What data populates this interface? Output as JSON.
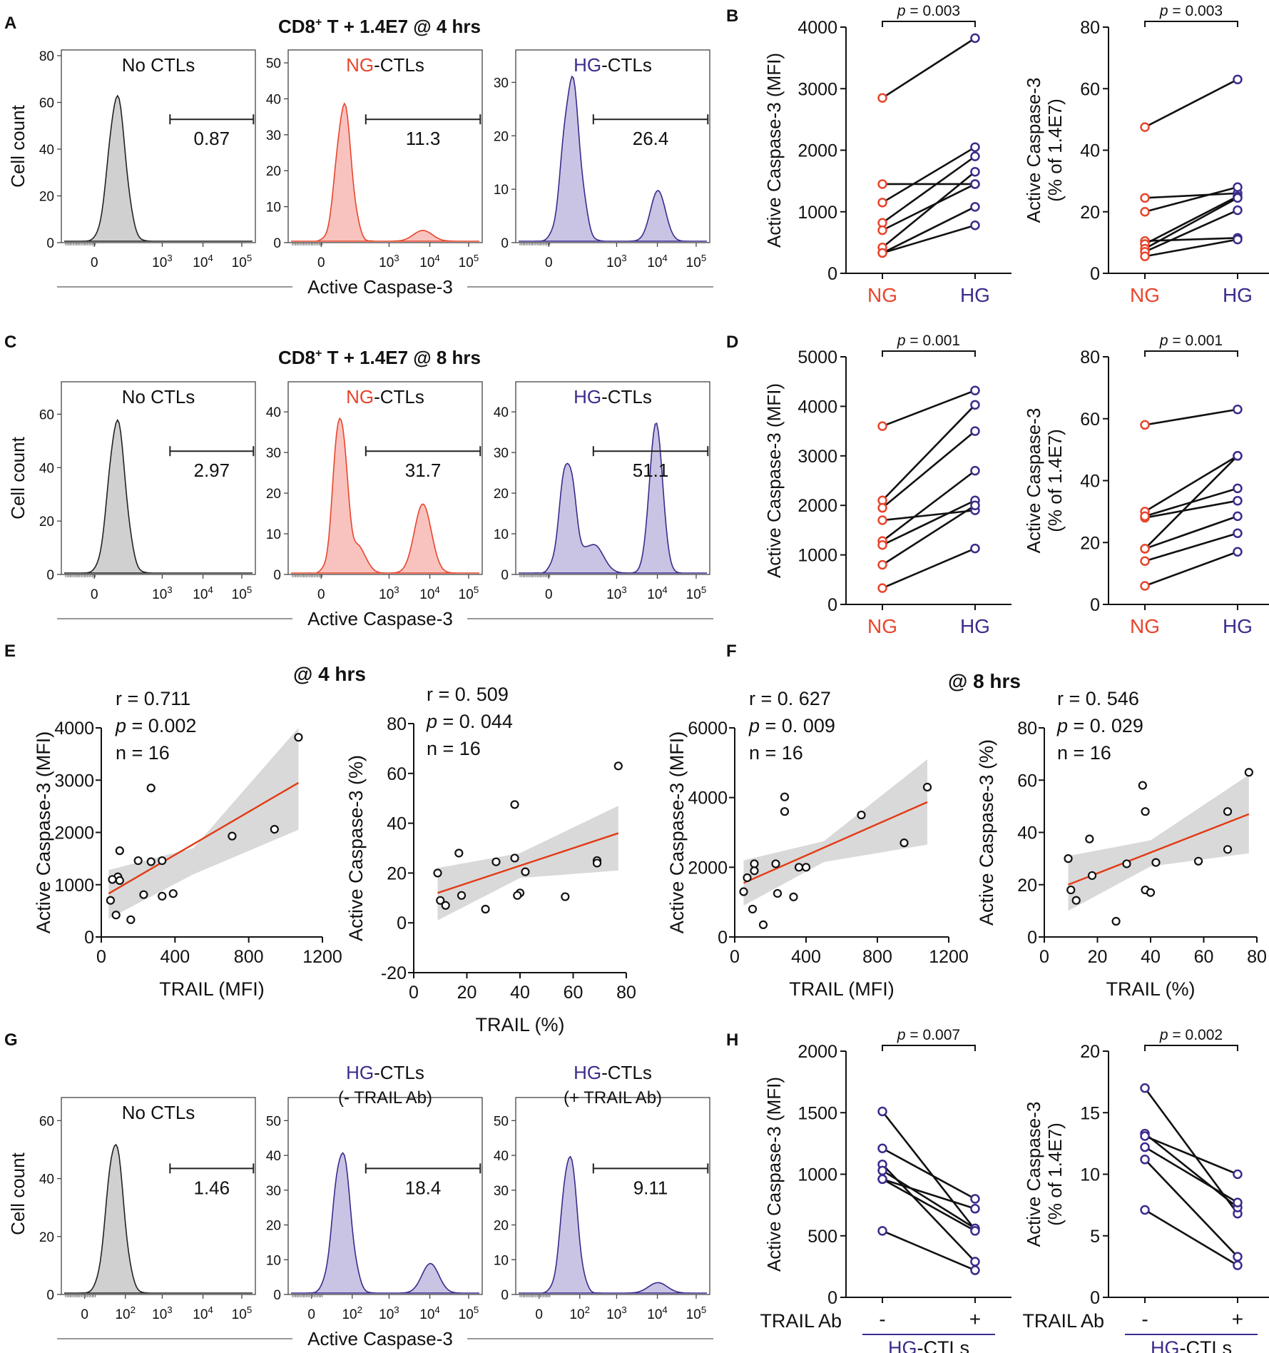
{
  "colors": {
    "ng": "#e8452c",
    "hg": "#3d2a8c",
    "hist_gray": "#d0d0d0",
    "hist_red_fill": "#f8c3bf",
    "hist_red_line": "#e8452c",
    "hist_blue_fill": "#c9c4e4",
    "hist_blue_line": "#3d2a8c",
    "fit_line": "#e23a14",
    "band": "#d9d9d9",
    "ink": "#111111"
  },
  "panel_letters": {
    "A": "A",
    "B": "B",
    "C": "C",
    "D": "D",
    "E": "E",
    "F": "F",
    "G": "G",
    "H": "H"
  },
  "texts": {
    "a_title": {
      "prefix": "CD8",
      "sup": "+",
      "rest": " T + 1.4E7 @ 4 hrs"
    },
    "c_title": {
      "prefix": "CD8",
      "sup": "+",
      "rest": " T + 1.4E7 @ 8 hrs"
    },
    "e_title": "@ 4 hrs",
    "f_title": "@ 8 hrs",
    "no_ctls": "No CTLs",
    "ng_part": "NG",
    "hg_part": "HG",
    "ctls_suffix": "-CTLs",
    "minus_trail": "(- TRAIL Ab)",
    "plus_trail": "(+ TRAIL Ab)",
    "cell_count": "Cell count",
    "active_casp": "Active Caspase-3",
    "trail_ab": "TRAIL Ab",
    "minus": "-",
    "plus": "+"
  },
  "histogram_x_ticks": [
    "0",
    "10^3",
    "10^4",
    "10^5"
  ],
  "histogram_x_ticks_g": [
    "0",
    "10^2",
    "10^3",
    "10^4",
    "10^5"
  ],
  "chart_data": [
    {
      "id": "A-no",
      "type": "histogram",
      "title": "No CTLs",
      "gate_value": "0.87",
      "ylabel": "Cell count",
      "xlabel": "Active Caspase-3",
      "yticks": [
        0,
        20,
        40,
        60,
        80
      ],
      "ymax": 80,
      "peaks": [
        {
          "x": 0.28,
          "h": 62,
          "w": 0.045
        }
      ]
    },
    {
      "id": "A-ng",
      "type": "histogram",
      "title": "NG-CTLs",
      "gate_value": "11.3",
      "yticks": [
        0,
        10,
        20,
        30,
        40,
        50
      ],
      "ymax": 52,
      "peaks": [
        {
          "x": 0.28,
          "h": 38,
          "w": 0.04
        },
        {
          "x": 0.7,
          "h": 3,
          "w": 0.05
        }
      ]
    },
    {
      "id": "A-hg",
      "type": "histogram",
      "title": "HG-CTLs",
      "gate_value": "26.4",
      "yticks": [
        0,
        10,
        20,
        30
      ],
      "ymax": 35,
      "peaks": [
        {
          "x": 0.28,
          "h": 30.5,
          "w": 0.045
        },
        {
          "x": 0.74,
          "h": 9.5,
          "w": 0.04
        }
      ]
    },
    {
      "id": "C-no",
      "type": "histogram",
      "title": "No CTLs",
      "gate_value": "2.97",
      "ylabel": "Cell count",
      "xlabel": "Active Caspase-3",
      "yticks": [
        0,
        20,
        40,
        60
      ],
      "ymax": 70,
      "peaks": [
        {
          "x": 0.28,
          "h": 57,
          "w": 0.045
        }
      ]
    },
    {
      "id": "C-ng",
      "type": "histogram",
      "title": "NG-CTLs",
      "gate_value": "31.7",
      "yticks": [
        0,
        10,
        20,
        30,
        40
      ],
      "ymax": 46,
      "peaks": [
        {
          "x": 0.26,
          "h": 39,
          "w": 0.035
        },
        {
          "x": 0.36,
          "h": 6,
          "w": 0.04
        },
        {
          "x": 0.7,
          "h": 17,
          "w": 0.045
        }
      ]
    },
    {
      "id": "C-hg",
      "type": "histogram",
      "title": "HG-CTLs",
      "gate_value": "51.1",
      "yticks": [
        0,
        10,
        20,
        30,
        40
      ],
      "ymax": 46,
      "peaks": [
        {
          "x": 0.26,
          "h": 28,
          "w": 0.04
        },
        {
          "x": 0.4,
          "h": 7,
          "w": 0.05
        },
        {
          "x": 0.73,
          "h": 37,
          "w": 0.035
        }
      ]
    },
    {
      "id": "G-no",
      "type": "histogram",
      "title": "No CTLs",
      "gate_value": "1.46",
      "ylabel": "Cell count",
      "xlabel": "Active Caspase-3",
      "yticks": [
        0,
        20,
        40,
        60
      ],
      "ymax": 66,
      "peaks": [
        {
          "x": 0.27,
          "h": 52,
          "w": 0.045
        }
      ]
    },
    {
      "id": "G-minus",
      "type": "histogram",
      "title": "HG-CTLs (- TRAIL Ab)",
      "gate_value": "18.4",
      "yticks": [
        0,
        10,
        20,
        30,
        40,
        50
      ],
      "ymax": 55,
      "peaks": [
        {
          "x": 0.27,
          "h": 41,
          "w": 0.045
        },
        {
          "x": 0.74,
          "h": 8.5,
          "w": 0.045
        }
      ]
    },
    {
      "id": "G-plus",
      "type": "histogram",
      "title": "HG-CTLs (+ TRAIL Ab)",
      "gate_value": "9.11",
      "yticks": [
        0,
        10,
        20,
        30,
        40,
        50
      ],
      "ymax": 55,
      "peaks": [
        {
          "x": 0.27,
          "h": 40,
          "w": 0.04
        },
        {
          "x": 0.74,
          "h": 3,
          "w": 0.05
        }
      ]
    },
    {
      "id": "B-mfi",
      "type": "paired",
      "ylabel": "Active Caspase-3 (MFI)",
      "yticks": [
        0,
        1000,
        2000,
        3000,
        4000
      ],
      "ylim": [
        0,
        4000
      ],
      "categories": [
        "NG",
        "HG"
      ],
      "p_text": "p = 0.003",
      "pairs": [
        [
          2850,
          3820
        ],
        [
          1450,
          1450
        ],
        [
          1150,
          2050
        ],
        [
          820,
          1900
        ],
        [
          700,
          1450
        ],
        [
          420,
          1650
        ],
        [
          330,
          1080
        ],
        [
          330,
          780
        ]
      ]
    },
    {
      "id": "B-pct",
      "type": "paired",
      "ylabel": [
        "Active Caspase-3",
        "(% of 1.4E7)"
      ],
      "yticks": [
        0,
        20,
        40,
        60,
        80
      ],
      "ylim": [
        0,
        80
      ],
      "categories": [
        "NG",
        "HG"
      ],
      "p_text": "p = 0.003",
      "pairs": [
        [
          47.5,
          63
        ],
        [
          24.5,
          26
        ],
        [
          20,
          28
        ],
        [
          10.5,
          11.5
        ],
        [
          9.5,
          25
        ],
        [
          8,
          24.5
        ],
        [
          7,
          20.5
        ],
        [
          5.5,
          11
        ]
      ]
    },
    {
      "id": "D-mfi",
      "type": "paired",
      "ylabel": "Active Caspase-3 (MFI)",
      "yticks": [
        0,
        1000,
        2000,
        3000,
        4000,
        5000
      ],
      "ylim": [
        0,
        5000
      ],
      "categories": [
        "NG",
        "HG"
      ],
      "p_text": "p = 0.001",
      "pairs": [
        [
          3600,
          4320
        ],
        [
          2100,
          4030
        ],
        [
          1950,
          3500
        ],
        [
          1700,
          1900
        ],
        [
          1280,
          2700
        ],
        [
          1200,
          2100
        ],
        [
          800,
          2000
        ],
        [
          330,
          1130
        ]
      ]
    },
    {
      "id": "D-pct",
      "type": "paired",
      "ylabel": [
        "Active Caspase-3",
        "(% of 1.4E7)"
      ],
      "yticks": [
        0,
        20,
        40,
        60,
        80
      ],
      "ylim": [
        0,
        80
      ],
      "categories": [
        "NG",
        "HG"
      ],
      "p_text": "p = 0.001",
      "pairs": [
        [
          58,
          63
        ],
        [
          30,
          48
        ],
        [
          28,
          33.5
        ],
        [
          28.5,
          37.5
        ],
        [
          18,
          28.5
        ],
        [
          18,
          48
        ],
        [
          14,
          23
        ],
        [
          6,
          17
        ]
      ]
    },
    {
      "id": "H-mfi",
      "type": "paired",
      "ylabel": "Active Caspase-3 (MFI)",
      "yticks": [
        0,
        500,
        1000,
        1500,
        2000
      ],
      "ylim": [
        0,
        2000
      ],
      "categories": [
        "-",
        "+"
      ],
      "p_text": "p = 0.007",
      "pairs": [
        [
          1510,
          550
        ],
        [
          1210,
          800
        ],
        [
          1080,
          290
        ],
        [
          1030,
          560
        ],
        [
          960,
          720
        ],
        [
          960,
          540
        ],
        [
          540,
          220
        ]
      ]
    },
    {
      "id": "H-pct",
      "type": "paired",
      "ylabel": [
        "Active Caspase-3",
        "(% of 1.4E7)"
      ],
      "yticks": [
        0,
        5,
        10,
        15,
        20
      ],
      "ylim": [
        0,
        20
      ],
      "categories": [
        "-",
        "+"
      ],
      "p_text": "p = 0.002",
      "pairs": [
        [
          17,
          6.8
        ],
        [
          13.3,
          7.3
        ],
        [
          13.1,
          10
        ],
        [
          12.2,
          7.7
        ],
        [
          11.2,
          3.3
        ],
        [
          7.1,
          2.6
        ]
      ]
    },
    {
      "id": "E-mfi",
      "type": "scatter",
      "xlabel": "TRAIL (MFI)",
      "ylabel": "Active Caspase-3 (MFI)",
      "xticks": [
        0,
        400,
        800,
        1200
      ],
      "yticks": [
        0,
        1000,
        2000,
        3000,
        4000
      ],
      "xlim": [
        0,
        1200
      ],
      "ylim": [
        0,
        4000
      ],
      "stats": [
        "r = 0.711",
        "p = 0.002",
        "n = 16"
      ],
      "points": [
        [
          1070,
          3820
        ],
        [
          270,
          2850
        ],
        [
          940,
          2060
        ],
        [
          710,
          1930
        ],
        [
          100,
          1650
        ],
        [
          200,
          1460
        ],
        [
          330,
          1460
        ],
        [
          270,
          1440
        ],
        [
          90,
          1150
        ],
        [
          60,
          1100
        ],
        [
          100,
          1080
        ],
        [
          390,
          830
        ],
        [
          230,
          810
        ],
        [
          330,
          780
        ],
        [
          50,
          700
        ],
        [
          80,
          420
        ],
        [
          160,
          330
        ]
      ],
      "fit": [
        [
          40,
          830
        ],
        [
          1070,
          2950
        ]
      ],
      "band_upper": [
        [
          40,
          1280
        ],
        [
          500,
          1700
        ],
        [
          1070,
          4000
        ]
      ],
      "band_lower": [
        [
          40,
          350
        ],
        [
          500,
          1200
        ],
        [
          1070,
          2050
        ]
      ]
    },
    {
      "id": "E-pct",
      "type": "scatter",
      "xlabel": "TRAIL (%)",
      "ylabel": "Active Caspase-3 (%)",
      "xticks": [
        0,
        20,
        40,
        60,
        80
      ],
      "yticks": [
        -20,
        0,
        20,
        40,
        60,
        80
      ],
      "xlim": [
        0,
        80
      ],
      "ylim": [
        -20,
        80
      ],
      "stats": [
        "r = 0. 509",
        "p = 0. 044",
        "n = 16"
      ],
      "points": [
        [
          77,
          63
        ],
        [
          38,
          47.5
        ],
        [
          17,
          28
        ],
        [
          38,
          26
        ],
        [
          31,
          24.5
        ],
        [
          69,
          25
        ],
        [
          69,
          24
        ],
        [
          9,
          20
        ],
        [
          42,
          20.5
        ],
        [
          40,
          12
        ],
        [
          39,
          11
        ],
        [
          18,
          11
        ],
        [
          10,
          9
        ],
        [
          57,
          10.5
        ],
        [
          12,
          7
        ],
        [
          27,
          5.5
        ]
      ],
      "fit": [
        [
          9,
          12
        ],
        [
          77,
          36
        ]
      ],
      "band_upper": [
        [
          9,
          22
        ],
        [
          40,
          28
        ],
        [
          77,
          47
        ]
      ],
      "band_lower": [
        [
          9,
          1
        ],
        [
          40,
          18
        ],
        [
          77,
          21
        ]
      ]
    },
    {
      "id": "F-mfi",
      "type": "scatter",
      "xlabel": "TRAIL (MFI)",
      "ylabel": "Active Caspase-3 (MFI)",
      "xticks": [
        0,
        400,
        800,
        1200
      ],
      "yticks": [
        0,
        2000,
        4000,
        6000
      ],
      "xlim": [
        0,
        1200
      ],
      "ylim": [
        0,
        6000
      ],
      "stats": [
        "r = 0. 627",
        "p = 0. 009",
        "n = 16"
      ],
      "points": [
        [
          1080,
          4300
        ],
        [
          280,
          4020
        ],
        [
          280,
          3600
        ],
        [
          710,
          3500
        ],
        [
          950,
          2700
        ],
        [
          110,
          2100
        ],
        [
          230,
          2100
        ],
        [
          360,
          2000
        ],
        [
          400,
          2000
        ],
        [
          70,
          1700
        ],
        [
          110,
          1900
        ],
        [
          50,
          1300
        ],
        [
          240,
          1250
        ],
        [
          330,
          1150
        ],
        [
          100,
          800
        ],
        [
          160,
          350
        ]
      ],
      "fit": [
        [
          50,
          1550
        ],
        [
          1080,
          3870
        ]
      ],
      "band_upper": [
        [
          50,
          2200
        ],
        [
          500,
          2750
        ],
        [
          1080,
          5100
        ]
      ],
      "band_lower": [
        [
          50,
          900
        ],
        [
          500,
          2150
        ],
        [
          1080,
          2650
        ]
      ]
    },
    {
      "id": "F-pct",
      "type": "scatter",
      "xlabel": "TRAIL (%)",
      "ylabel": "Active Caspase-3 (%)",
      "xticks": [
        0,
        20,
        40,
        60,
        80
      ],
      "yticks": [
        0,
        20,
        40,
        60,
        80
      ],
      "xlim": [
        0,
        80
      ],
      "ylim": [
        0,
        80
      ],
      "stats": [
        "r = 0. 546",
        "p = 0. 029",
        "n = 16"
      ],
      "points": [
        [
          77,
          63
        ],
        [
          37,
          58
        ],
        [
          38,
          48
        ],
        [
          69,
          48
        ],
        [
          17,
          37.5
        ],
        [
          69,
          33.5
        ],
        [
          9,
          30
        ],
        [
          58,
          29
        ],
        [
          31,
          28
        ],
        [
          42,
          28.5
        ],
        [
          18,
          23.5
        ],
        [
          38,
          18
        ],
        [
          10,
          18
        ],
        [
          40,
          17
        ],
        [
          12,
          14
        ],
        [
          27,
          6
        ]
      ],
      "fit": [
        [
          9,
          20
        ],
        [
          77,
          47
        ]
      ],
      "band_upper": [
        [
          9,
          31
        ],
        [
          40,
          37
        ],
        [
          77,
          62
        ]
      ],
      "band_lower": [
        [
          9,
          10
        ],
        [
          40,
          27
        ],
        [
          77,
          32
        ]
      ]
    }
  ]
}
